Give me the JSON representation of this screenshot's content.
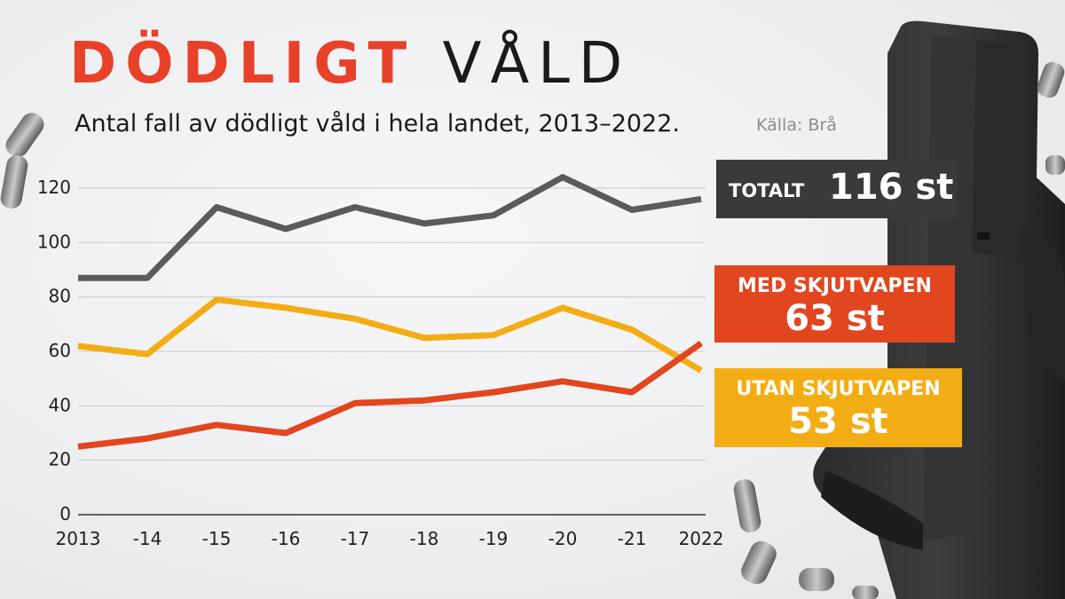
{
  "header": {
    "title_bold": "DÖDLIGT",
    "title_light": "VÅLD",
    "subtitle": "Antal fall av dödligt våld i hela landet, 2013–2022.",
    "source": "Källa: Brå"
  },
  "labels": {
    "total_label": "TOTALT",
    "total_value": "116 st",
    "med_label": "MED SKJUTVAPEN",
    "med_value": "63 st",
    "utan_label": "UTAN SKJUTVAPEN",
    "utan_value": "53 st"
  },
  "colors": {
    "total": "#5b5a5c",
    "med": "#e2461f",
    "utan": "#f3ad14",
    "title_accent": "#e8412a"
  },
  "chart_data": {
    "type": "line",
    "x": [
      "2013",
      "-14",
      "-15",
      "-16",
      "-17",
      "-18",
      "-19",
      "-20",
      "-21",
      "2022"
    ],
    "yticks": [
      0,
      20,
      40,
      60,
      80,
      100,
      120
    ],
    "ylim": [
      0,
      120
    ],
    "grid": true,
    "series": [
      {
        "name": "TOTALT",
        "color": "#5b5a5c",
        "values": [
          87,
          87,
          113,
          105,
          113,
          107,
          110,
          124,
          112,
          116
        ]
      },
      {
        "name": "UTAN SKJUTVAPEN",
        "color": "#f3ad14",
        "values": [
          62,
          59,
          79,
          76,
          72,
          65,
          66,
          76,
          68,
          53
        ]
      },
      {
        "name": "MED SKJUTVAPEN",
        "color": "#e2461f",
        "values": [
          25,
          28,
          33,
          30,
          41,
          42,
          45,
          49,
          45,
          63
        ]
      }
    ]
  }
}
